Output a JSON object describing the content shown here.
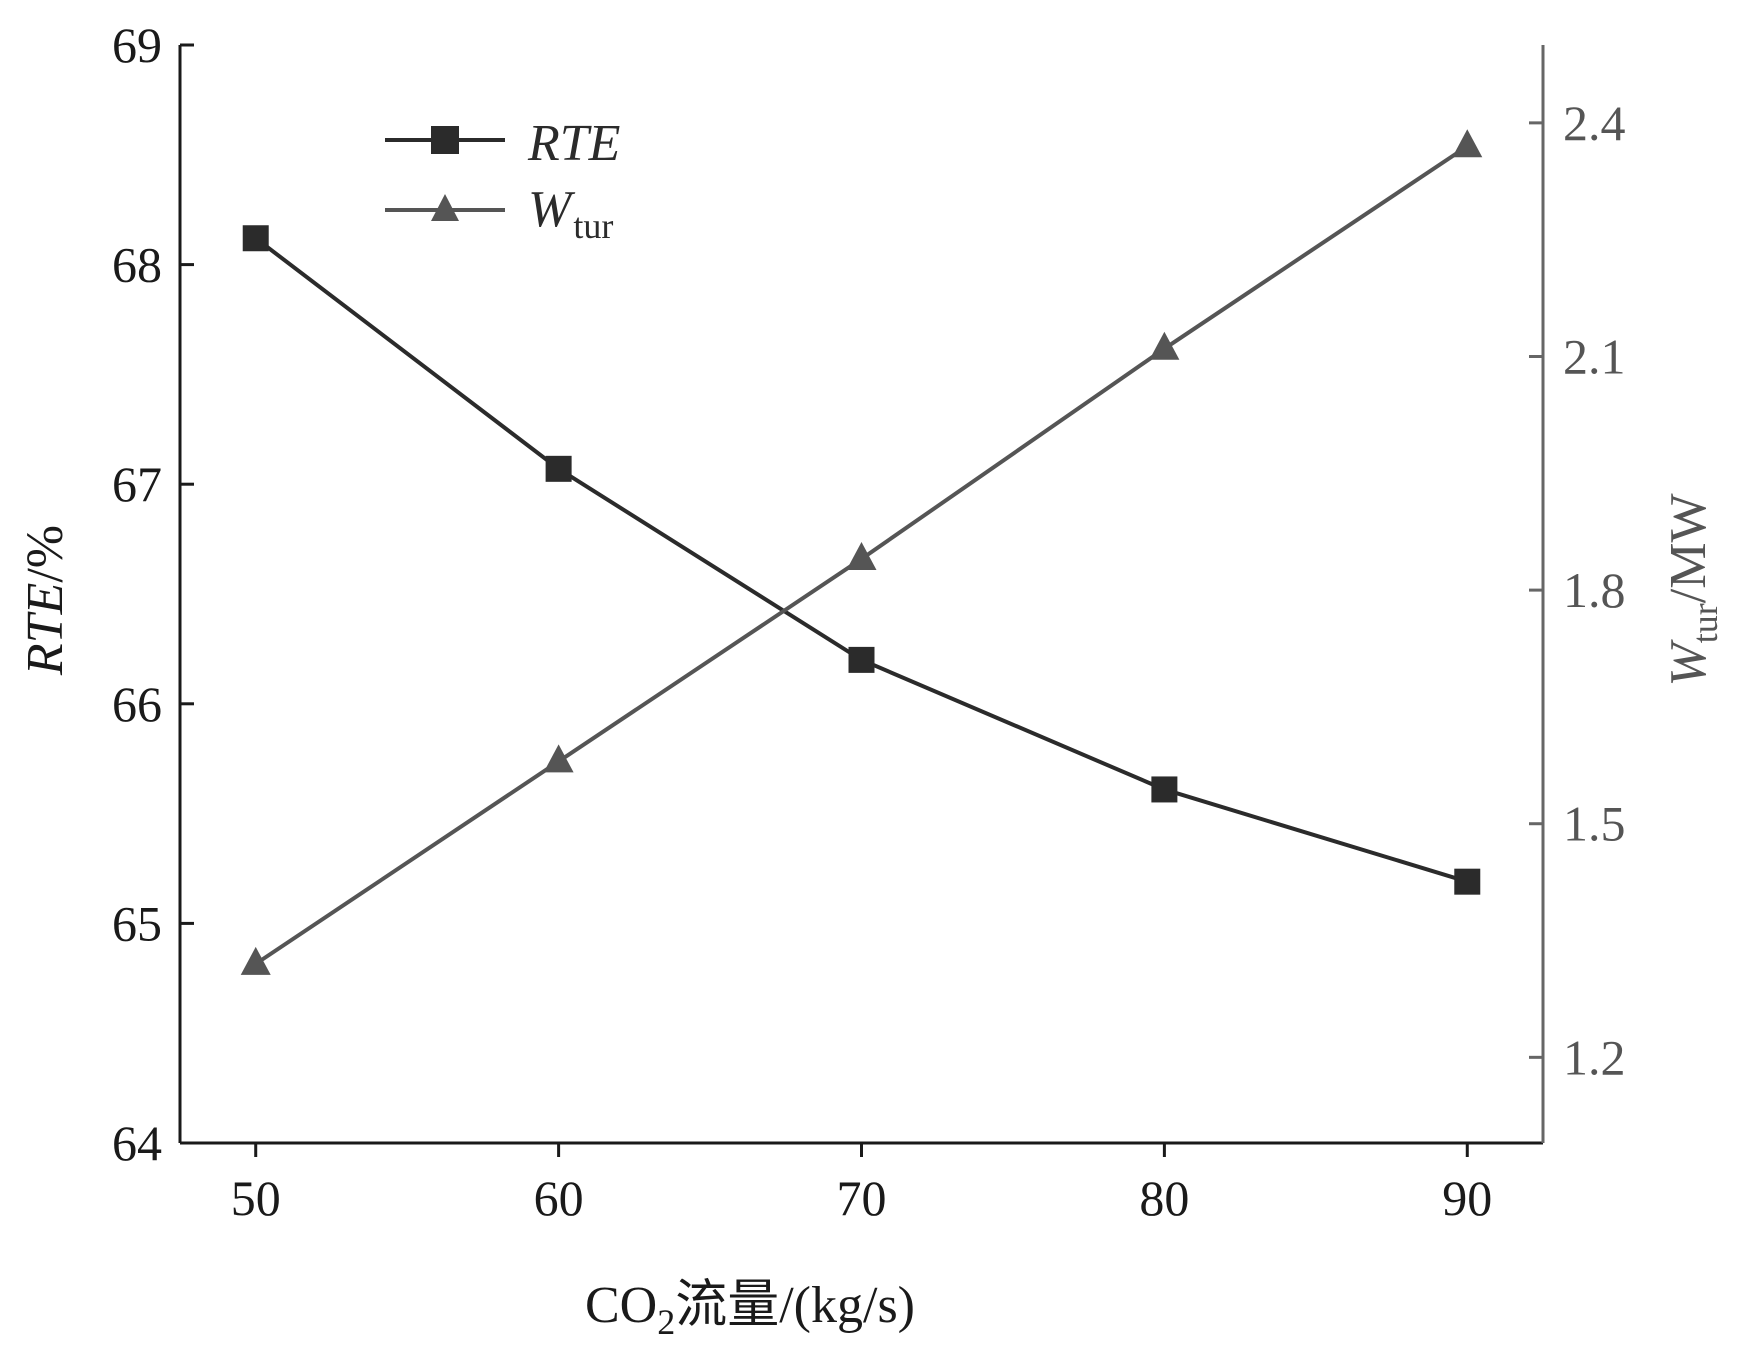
{
  "chart_data": {
    "type": "line",
    "x": [
      50,
      60,
      70,
      80,
      90
    ],
    "x_ticks": [
      "50",
      "60",
      "70",
      "80",
      "90"
    ],
    "xlim": [
      47.5,
      92.5
    ],
    "xlabel": {
      "prefix": "CO",
      "sub": "2",
      "suffix": "流量/(kg/s)"
    },
    "y_left": {
      "label_italic": "RTE",
      "label_suffix": "/%",
      "ylim": [
        64,
        69
      ],
      "ticks": [
        "64",
        "65",
        "66",
        "67",
        "68",
        "69"
      ]
    },
    "y_right": {
      "label_italic": "W",
      "label_sub": "tur",
      "label_suffix": "/MW",
      "ylim": [
        1.09,
        2.5
      ],
      "ticks": [
        "1.2",
        "1.5",
        "1.8",
        "2.1",
        "2.4"
      ]
    },
    "series": [
      {
        "name": "RTE",
        "axis": "left",
        "marker": "square",
        "color": "#2b2b2b",
        "values": [
          68.12,
          67.07,
          66.2,
          65.61,
          65.19
        ]
      },
      {
        "name": "W",
        "name_sub": "tur",
        "axis": "right",
        "marker": "triangle",
        "color": "#555555",
        "values": [
          1.32,
          1.58,
          1.84,
          2.11,
          2.37
        ]
      }
    ],
    "legend": {
      "placement": "top-left"
    },
    "grid": false
  }
}
